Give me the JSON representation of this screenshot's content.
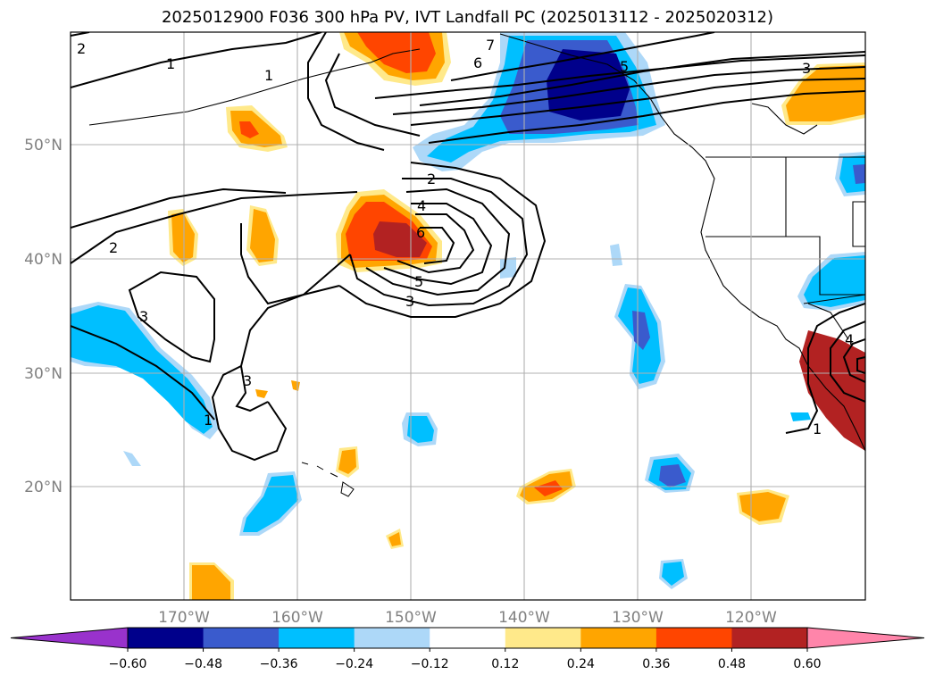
{
  "title": "2025012900 F036 300 hPa PV, IVT Landfall PC (2025013112 - 2025020312)",
  "lat_labels": [
    "50°N",
    "40°N",
    "30°N",
    "20°N"
  ],
  "lon_labels": [
    "170°W",
    "160°W",
    "150°W",
    "140°W",
    "130°W",
    "120°W"
  ],
  "colorbar": {
    "ticks": [
      "−0.60",
      "−0.48",
      "−0.36",
      "−0.24",
      "−0.12",
      "0.12",
      "0.24",
      "0.36",
      "0.48",
      "0.60"
    ],
    "colors": [
      "#9932cc",
      "#00008b",
      "#3a5bcd",
      "#00bfff",
      "#add8f8",
      "#ffffff",
      "#ffe98a",
      "#ffa500",
      "#ff4500",
      "#b22222",
      "#ff85aa"
    ]
  },
  "contour_labels": [
    "2",
    "1",
    "1",
    "7",
    "6",
    "5",
    "3",
    "2",
    "4",
    "6",
    "5",
    "3",
    "2",
    "3",
    "3",
    "1",
    "4",
    "1"
  ]
}
